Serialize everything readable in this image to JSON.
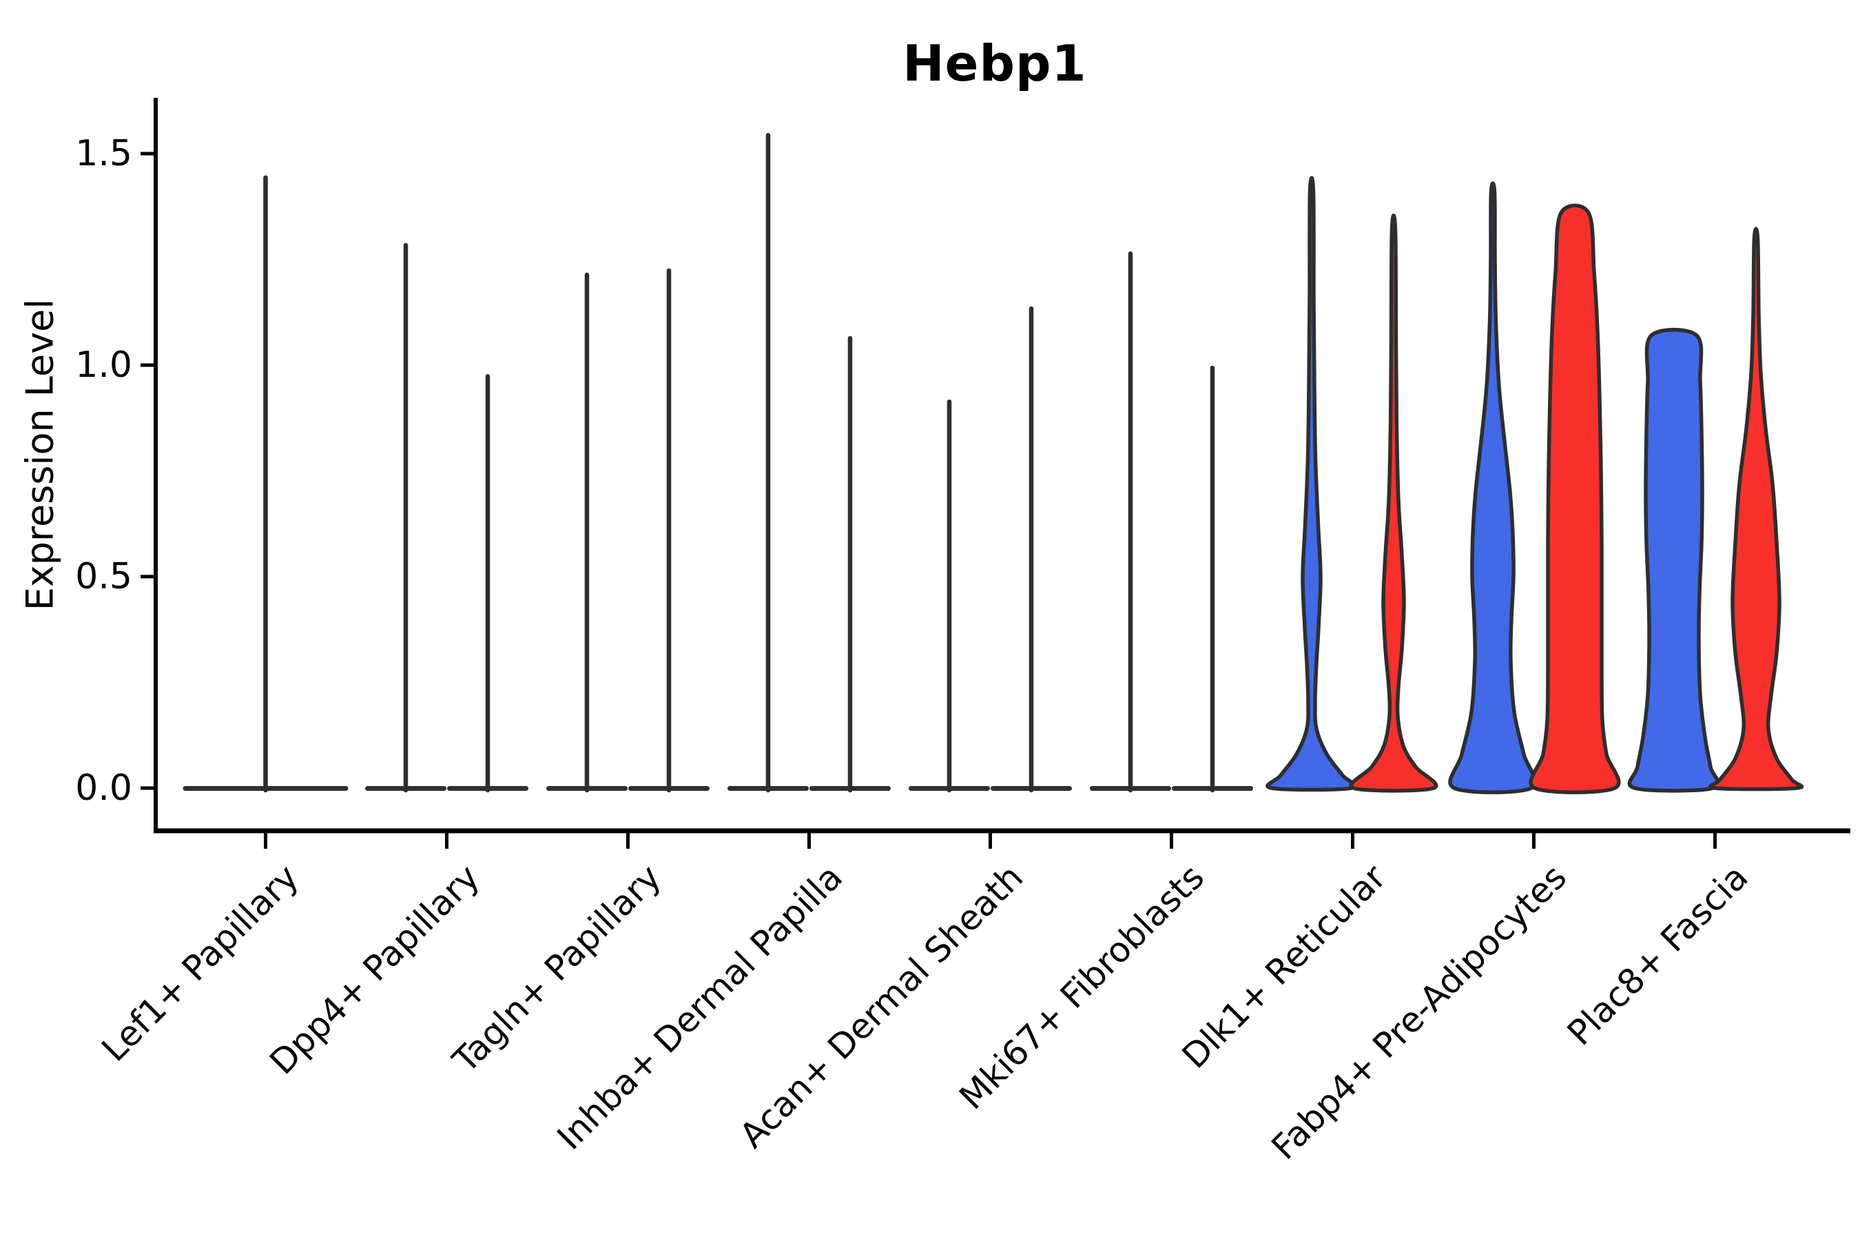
{
  "title": "Hebp1",
  "y_axis": {
    "label": "Expression Level",
    "tick_labels": [
      "0.0",
      "0.5",
      "1.0",
      "1.5"
    ],
    "tick_values": [
      0.0,
      0.5,
      1.0,
      1.5
    ]
  },
  "colors": {
    "blue": "#4169E8",
    "red": "#F8302C",
    "outline": "#2e2e2e",
    "axis": "#000000"
  },
  "chart_data": {
    "type": "violin",
    "title": "Hebp1",
    "xlabel": "",
    "ylabel": "Expression Level",
    "ylim": [
      -0.1,
      1.63
    ],
    "yticks": [
      0.0,
      0.5,
      1.0,
      1.5
    ],
    "grid": false,
    "legend": "none",
    "description": "Split violin plot of Hebp1 expression per fibroblast cluster; two violins (blue left, red right) per category. First six categories are near-zero flat distributions with a thin max-expression spike.",
    "categories": [
      {
        "label": "Lef1+ Papillary",
        "violins": [
          {
            "series": "single",
            "kind": "spike",
            "max": 1.45,
            "base_halfwidth": 120,
            "offset": 0
          }
        ]
      },
      {
        "label": "Dpp4+ Papillary",
        "violins": [
          {
            "series": "blue",
            "kind": "spike",
            "max": 1.29,
            "base_halfwidth": 59,
            "offset": -59.5
          },
          {
            "series": "red",
            "kind": "spike",
            "max": 0.98,
            "base_halfwidth": 59,
            "offset": 59.5
          }
        ]
      },
      {
        "label": "Tagln+ Papillary",
        "violins": [
          {
            "series": "blue",
            "kind": "spike",
            "max": 1.22,
            "base_halfwidth": 59,
            "offset": -59.5
          },
          {
            "series": "red",
            "kind": "spike",
            "max": 1.23,
            "base_halfwidth": 59,
            "offset": 59.5
          }
        ]
      },
      {
        "label": "Inhba+ Dermal Papilla",
        "violins": [
          {
            "series": "blue",
            "kind": "spike",
            "max": 1.55,
            "base_halfwidth": 59,
            "offset": -59.5
          },
          {
            "series": "red",
            "kind": "spike",
            "max": 1.07,
            "base_halfwidth": 59,
            "offset": 59.5
          }
        ]
      },
      {
        "label": "Acan+ Dermal Sheath",
        "violins": [
          {
            "series": "blue",
            "kind": "spike",
            "max": 0.92,
            "base_halfwidth": 59,
            "offset": -59.5
          },
          {
            "series": "red",
            "kind": "spike",
            "max": 1.14,
            "base_halfwidth": 59,
            "offset": 59.5
          }
        ]
      },
      {
        "label": "Mki67+ Fibroblasts",
        "violins": [
          {
            "series": "blue",
            "kind": "spike",
            "max": 1.27,
            "base_halfwidth": 59,
            "offset": -59.5
          },
          {
            "series": "red",
            "kind": "spike",
            "max": 1.0,
            "base_halfwidth": 59,
            "offset": 59.5
          }
        ]
      },
      {
        "label": "Dlk1+ Reticular",
        "violins": [
          {
            "series": "blue",
            "kind": "violin",
            "max": 1.41,
            "offset": -59.5,
            "profile": [
              [
                1.41,
                2.5
              ],
              [
                1.15,
                3
              ],
              [
                0.95,
                4
              ],
              [
                0.78,
                5.5
              ],
              [
                0.62,
                9.5
              ],
              [
                0.5,
                13
              ],
              [
                0.38,
                10
              ],
              [
                0.28,
                6.5
              ],
              [
                0.2,
                5
              ],
              [
                0.14,
                7
              ],
              [
                0.08,
                22
              ],
              [
                0.03,
                45
              ],
              [
                0.0,
                58
              ]
            ]
          },
          {
            "series": "red",
            "kind": "violin",
            "max": 1.32,
            "offset": 59.5,
            "profile": [
              [
                1.32,
                2.5
              ],
              [
                1.05,
                3.5
              ],
              [
                0.85,
                4.5
              ],
              [
                0.68,
                7
              ],
              [
                0.55,
                12
              ],
              [
                0.44,
                15
              ],
              [
                0.33,
                12
              ],
              [
                0.24,
                7
              ],
              [
                0.17,
                6
              ],
              [
                0.1,
                14
              ],
              [
                0.05,
                32
              ],
              [
                0.0,
                58
              ]
            ]
          }
        ]
      },
      {
        "label": "Fabp4+ Pre-Adipocytes",
        "violins": [
          {
            "series": "blue",
            "kind": "violin",
            "max": 1.41,
            "offset": -59.5,
            "profile": [
              [
                1.41,
                2.5
              ],
              [
                1.25,
                3
              ],
              [
                1.1,
                4.5
              ],
              [
                0.95,
                9
              ],
              [
                0.82,
                17
              ],
              [
                0.7,
                25
              ],
              [
                0.6,
                29
              ],
              [
                0.5,
                30
              ],
              [
                0.4,
                27
              ],
              [
                0.3,
                26
              ],
              [
                0.18,
                31
              ],
              [
                0.08,
                45
              ],
              [
                0.0,
                56
              ]
            ]
          },
          {
            "series": "red",
            "kind": "violin",
            "max": 1.36,
            "flat_top": true,
            "offset": 59.5,
            "profile": [
              [
                1.36,
                20
              ],
              [
                1.22,
                28
              ],
              [
                1.08,
                33
              ],
              [
                0.92,
                36
              ],
              [
                0.75,
                38
              ],
              [
                0.58,
                39
              ],
              [
                0.42,
                39
              ],
              [
                0.28,
                39
              ],
              [
                0.16,
                40
              ],
              [
                0.08,
                46
              ],
              [
                0.0,
                58
              ]
            ]
          }
        ]
      },
      {
        "label": "Plac8+ Fascia",
        "violins": [
          {
            "series": "blue",
            "kind": "violin",
            "max": 1.07,
            "flat_top": true,
            "offset": -59.5,
            "profile": [
              [
                1.07,
                33
              ],
              [
                0.96,
                38
              ],
              [
                0.84,
                40
              ],
              [
                0.7,
                41
              ],
              [
                0.58,
                40
              ],
              [
                0.46,
                37
              ],
              [
                0.34,
                36
              ],
              [
                0.22,
                38
              ],
              [
                0.12,
                45
              ],
              [
                0.05,
                53
              ],
              [
                0.0,
                57
              ]
            ]
          },
          {
            "series": "red",
            "kind": "violin",
            "max": 1.3,
            "offset": 59.5,
            "profile": [
              [
                1.3,
                2.5
              ],
              [
                1.12,
                4
              ],
              [
                0.98,
                7
              ],
              [
                0.85,
                14
              ],
              [
                0.72,
                24
              ],
              [
                0.58,
                30
              ],
              [
                0.44,
                34
              ],
              [
                0.32,
                30
              ],
              [
                0.22,
                22
              ],
              [
                0.14,
                18
              ],
              [
                0.07,
                30
              ],
              [
                0.02,
                52
              ],
              [
                0.0,
                59
              ]
            ]
          }
        ]
      }
    ]
  }
}
